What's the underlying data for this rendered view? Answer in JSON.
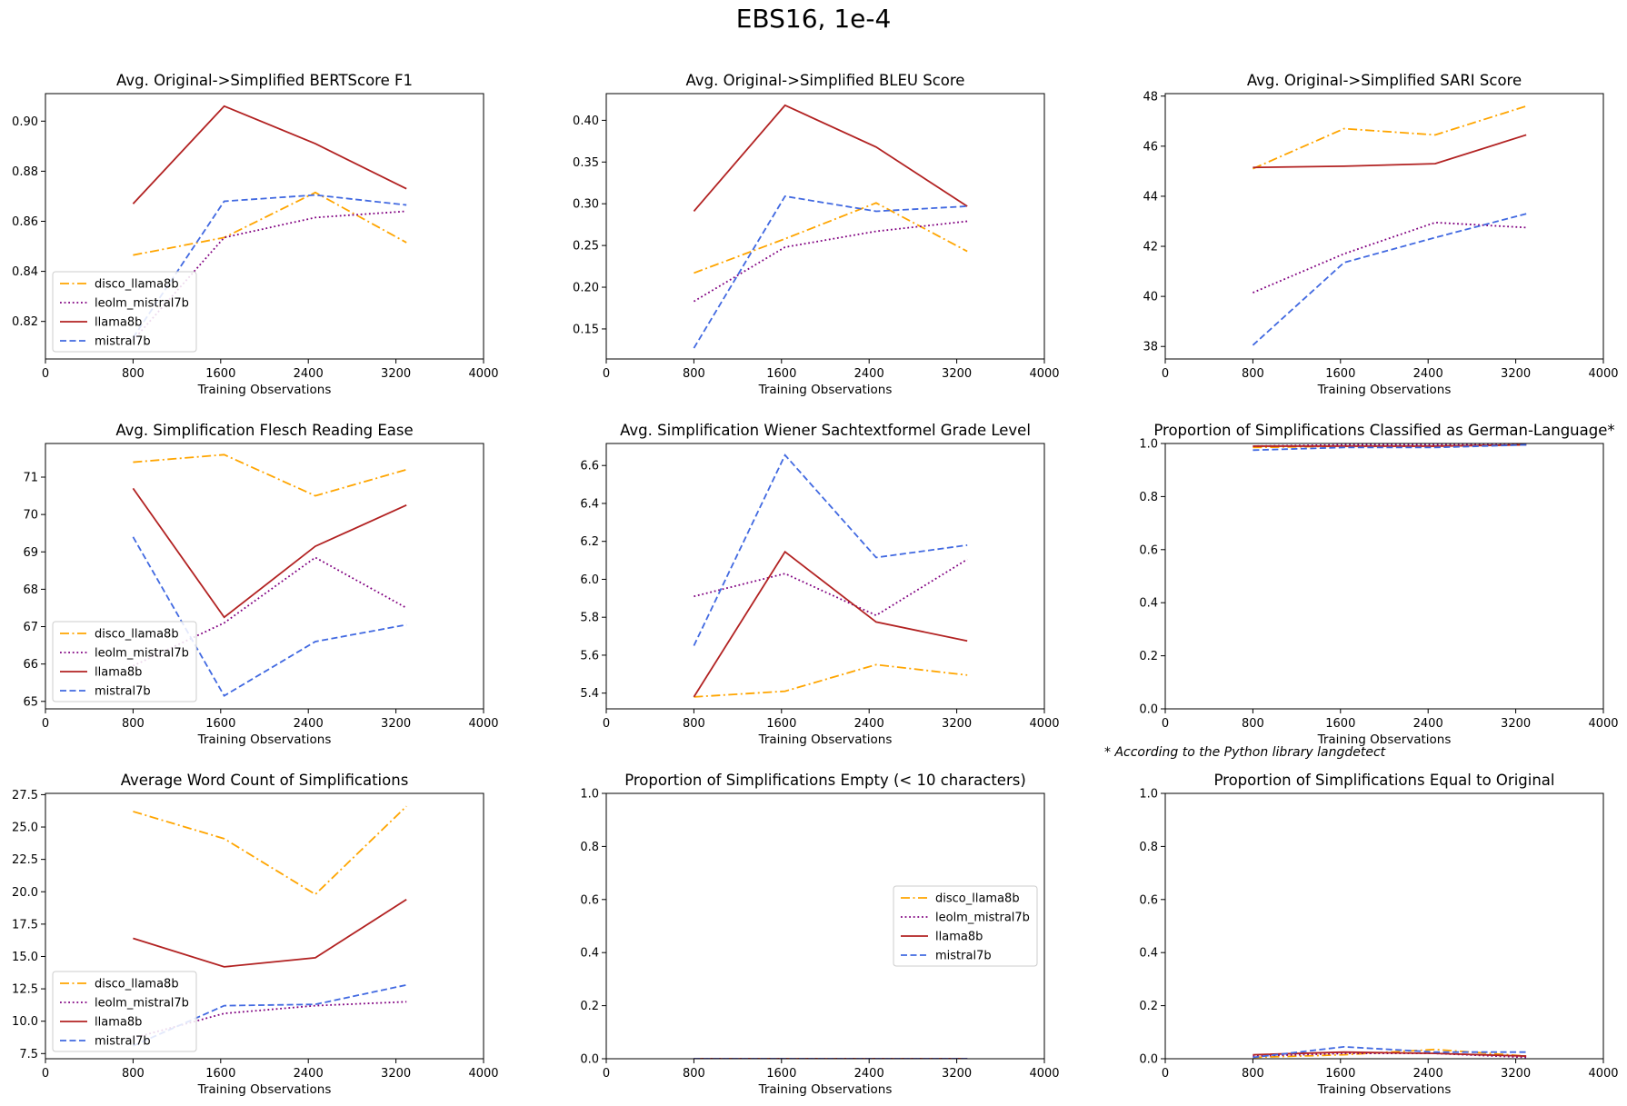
{
  "figure": {
    "title": "EBS16, 1e-4",
    "footnote": "* According to the Python library langdetect"
  },
  "colors": {
    "disco_llama8b": "#ffa500",
    "leolm_mistral7b": "#800080",
    "llama8b": "#b22222",
    "mistral7b": "#4169e1"
  },
  "chart_data": [
    {
      "type": "line",
      "title": "Avg. Original->Simplified BERTScore F1",
      "xlabel": "Training Observations",
      "ylabel": "",
      "xlim": [
        0,
        4000
      ],
      "ylim": [
        0.805,
        0.911
      ],
      "xticks": [
        0,
        800,
        1600,
        2400,
        3200,
        4000
      ],
      "yticks": [
        0.82,
        0.84,
        0.86,
        0.88,
        0.9
      ],
      "ytick_decimals": 2,
      "x": [
        800,
        1632,
        2464,
        3296
      ],
      "legend": "lower-left",
      "series": [
        {
          "name": "disco_llama8b",
          "values": [
            0.8465,
            0.8535,
            0.8715,
            0.8515
          ]
        },
        {
          "name": "leolm_mistral7b",
          "values": [
            0.8125,
            0.8535,
            0.8615,
            0.864
          ]
        },
        {
          "name": "llama8b",
          "values": [
            0.867,
            0.906,
            0.891,
            0.873
          ]
        },
        {
          "name": "mistral7b",
          "values": [
            0.8135,
            0.868,
            0.8705,
            0.8665
          ]
        }
      ]
    },
    {
      "type": "line",
      "title": "Avg. Original->Simplified BLEU Score",
      "xlabel": "Training Observations",
      "ylabel": "",
      "xlim": [
        0,
        4000
      ],
      "ylim": [
        0.114,
        0.432
      ],
      "xticks": [
        0,
        800,
        1600,
        2400,
        3200,
        4000
      ],
      "yticks": [
        0.15,
        0.2,
        0.25,
        0.3,
        0.35,
        0.4
      ],
      "ytick_decimals": 2,
      "x": [
        800,
        1632,
        2464,
        3296
      ],
      "legend": "none",
      "series": [
        {
          "name": "disco_llama8b",
          "values": [
            0.217,
            0.258,
            0.301,
            0.243
          ]
        },
        {
          "name": "leolm_mistral7b",
          "values": [
            0.183,
            0.248,
            0.267,
            0.279
          ]
        },
        {
          "name": "llama8b",
          "values": [
            0.291,
            0.418,
            0.368,
            0.297
          ]
        },
        {
          "name": "mistral7b",
          "values": [
            0.127,
            0.309,
            0.291,
            0.297
          ]
        }
      ]
    },
    {
      "type": "line",
      "title": "Avg. Original->Simplified SARI Score",
      "xlabel": "Training Observations",
      "ylabel": "",
      "xlim": [
        0,
        4000
      ],
      "ylim": [
        37.5,
        48.1
      ],
      "xticks": [
        0,
        800,
        1600,
        2400,
        3200,
        4000
      ],
      "yticks": [
        38,
        40,
        42,
        44,
        46,
        48
      ],
      "ytick_decimals": 0,
      "x": [
        800,
        1632,
        2464,
        3296
      ],
      "legend": "none",
      "series": [
        {
          "name": "disco_llama8b",
          "values": [
            45.1,
            46.7,
            46.45,
            47.6
          ]
        },
        {
          "name": "leolm_mistral7b",
          "values": [
            40.15,
            41.7,
            42.95,
            42.75
          ]
        },
        {
          "name": "llama8b",
          "values": [
            45.15,
            45.2,
            45.3,
            46.45
          ]
        },
        {
          "name": "mistral7b",
          "values": [
            38.05,
            41.35,
            42.35,
            43.3
          ]
        }
      ]
    },
    {
      "type": "line",
      "title": "Avg. Simplification Flesch Reading Ease",
      "xlabel": "Training Observations",
      "ylabel": "",
      "xlim": [
        0,
        4000
      ],
      "ylim": [
        64.8,
        71.9
      ],
      "xticks": [
        0,
        800,
        1600,
        2400,
        3200,
        4000
      ],
      "yticks": [
        65,
        66,
        67,
        68,
        69,
        70,
        71
      ],
      "ytick_decimals": 0,
      "x": [
        800,
        1632,
        2464,
        3296
      ],
      "legend": "lower-left",
      "series": [
        {
          "name": "disco_llama8b",
          "values": [
            71.4,
            71.6,
            70.5,
            71.2
          ]
        },
        {
          "name": "leolm_mistral7b",
          "values": [
            65.95,
            67.1,
            68.85,
            67.5
          ]
        },
        {
          "name": "llama8b",
          "values": [
            70.7,
            67.25,
            69.15,
            70.25
          ]
        },
        {
          "name": "mistral7b",
          "values": [
            69.4,
            65.15,
            66.6,
            67.05
          ]
        }
      ]
    },
    {
      "type": "line",
      "title": "Avg. Simplification Wiener Sachtextformel Grade Level",
      "xlabel": "Training Observations",
      "ylabel": "",
      "xlim": [
        0,
        4000
      ],
      "ylim": [
        5.317,
        6.716
      ],
      "xticks": [
        0,
        800,
        1600,
        2400,
        3200,
        4000
      ],
      "yticks": [
        5.4,
        5.6,
        5.8,
        6.0,
        6.2,
        6.4,
        6.6
      ],
      "ytick_decimals": 1,
      "x": [
        800,
        1632,
        2464,
        3296
      ],
      "legend": "none",
      "series": [
        {
          "name": "disco_llama8b",
          "values": [
            5.38,
            5.41,
            5.55,
            5.495
          ]
        },
        {
          "name": "leolm_mistral7b",
          "values": [
            5.91,
            6.03,
            5.81,
            6.105
          ]
        },
        {
          "name": "llama8b",
          "values": [
            5.38,
            6.145,
            5.775,
            5.675
          ]
        },
        {
          "name": "mistral7b",
          "values": [
            5.65,
            6.655,
            6.115,
            6.18
          ]
        }
      ]
    },
    {
      "type": "line",
      "title": "Proportion of Simplifications Classified as German-Language*",
      "xlabel": "Training Observations",
      "ylabel": "",
      "xlim": [
        0,
        4000
      ],
      "ylim": [
        0,
        1
      ],
      "xticks": [
        0,
        800,
        1600,
        2400,
        3200,
        4000
      ],
      "yticks": [
        0.0,
        0.2,
        0.4,
        0.6,
        0.8,
        1.0
      ],
      "ytick_decimals": 1,
      "x": [
        800,
        1632,
        2464,
        3296
      ],
      "legend": "none",
      "series": [
        {
          "name": "disco_llama8b",
          "values": [
            0.985,
            0.99,
            0.99,
            0.995
          ]
        },
        {
          "name": "leolm_mistral7b",
          "values": [
            0.99,
            0.995,
            0.995,
            0.995
          ]
        },
        {
          "name": "llama8b",
          "values": [
            0.99,
            0.99,
            0.99,
            0.995
          ]
        },
        {
          "name": "mistral7b",
          "values": [
            0.975,
            0.985,
            0.985,
            0.995
          ]
        }
      ]
    },
    {
      "type": "line",
      "title": "Average Word Count of Simplifications",
      "xlabel": "Training Observations",
      "ylabel": "",
      "xlim": [
        0,
        4000
      ],
      "ylim": [
        7.1,
        27.6
      ],
      "xticks": [
        0,
        800,
        1600,
        2400,
        3200,
        4000
      ],
      "yticks": [
        7.5,
        10.0,
        12.5,
        15.0,
        17.5,
        20.0,
        22.5,
        25.0,
        27.5
      ],
      "ytick_decimals": 1,
      "x": [
        800,
        1632,
        2464,
        3296
      ],
      "legend": "lower-left",
      "series": [
        {
          "name": "disco_llama8b",
          "values": [
            26.2,
            24.1,
            19.8,
            26.6
          ]
        },
        {
          "name": "leolm_mistral7b",
          "values": [
            8.7,
            10.6,
            11.2,
            11.5
          ]
        },
        {
          "name": "llama8b",
          "values": [
            16.4,
            14.2,
            14.9,
            19.4
          ]
        },
        {
          "name": "mistral7b",
          "values": [
            8.1,
            11.2,
            11.3,
            12.8
          ]
        }
      ]
    },
    {
      "type": "line",
      "title": "Proportion of Simplifications Empty (< 10 characters)",
      "xlabel": "Training Observations",
      "ylabel": "",
      "xlim": [
        0,
        4000
      ],
      "ylim": [
        0,
        1
      ],
      "xticks": [
        0,
        800,
        1600,
        2400,
        3200,
        4000
      ],
      "yticks": [
        0.0,
        0.2,
        0.4,
        0.6,
        0.8,
        1.0
      ],
      "ytick_decimals": 1,
      "x": [
        800,
        1632,
        2464,
        3296
      ],
      "legend": "center-right",
      "series": [
        {
          "name": "disco_llama8b",
          "values": [
            0,
            0,
            0,
            0
          ]
        },
        {
          "name": "leolm_mistral7b",
          "values": [
            0,
            0,
            0,
            0
          ]
        },
        {
          "name": "llama8b",
          "values": [
            0,
            0,
            0,
            0
          ]
        },
        {
          "name": "mistral7b",
          "values": [
            0,
            0,
            0,
            0
          ]
        }
      ]
    },
    {
      "type": "line",
      "title": "Proportion of Simplifications Equal to Original",
      "xlabel": "Training Observations",
      "ylabel": "",
      "xlim": [
        0,
        4000
      ],
      "ylim": [
        0,
        1
      ],
      "xticks": [
        0,
        800,
        1600,
        2400,
        3200,
        4000
      ],
      "yticks": [
        0.0,
        0.2,
        0.4,
        0.6,
        0.8,
        1.0
      ],
      "ytick_decimals": 1,
      "x": [
        800,
        1632,
        2464,
        3296
      ],
      "legend": "none",
      "series": [
        {
          "name": "disco_llama8b",
          "values": [
            0.005,
            0.015,
            0.035,
            0.01
          ]
        },
        {
          "name": "leolm_mistral7b",
          "values": [
            0.01,
            0.02,
            0.02,
            0.005
          ]
        },
        {
          "name": "llama8b",
          "values": [
            0.015,
            0.025,
            0.02,
            0.01
          ]
        },
        {
          "name": "mistral7b",
          "values": [
            0.005,
            0.045,
            0.025,
            0.025
          ]
        }
      ]
    }
  ]
}
